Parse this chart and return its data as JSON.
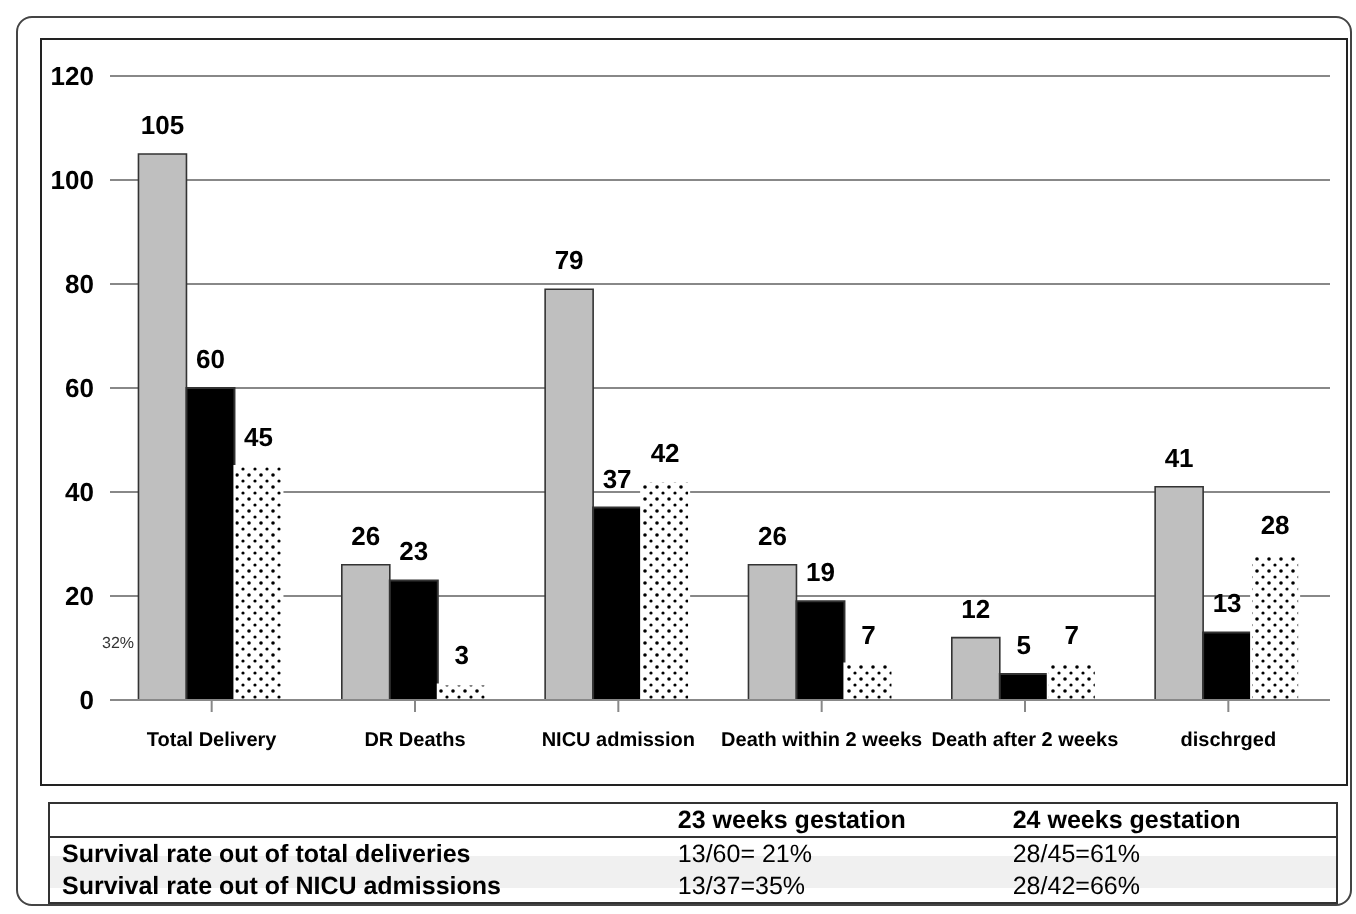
{
  "chart_data": {
    "type": "bar",
    "categories": [
      "Total Delivery",
      "DR Deaths",
      "NICU admission",
      "Death within 2 weeks",
      "Death after 2 weeks",
      "dischrged"
    ],
    "series": [
      {
        "color": "#bfbfbf",
        "values": [
          105,
          26,
          79,
          26,
          12,
          41
        ]
      },
      {
        "color": "#000000",
        "values": [
          60,
          23,
          37,
          19,
          5,
          13
        ]
      },
      {
        "color": "#ffffff",
        "values": [
          45,
          3,
          42,
          7,
          7,
          28
        ]
      }
    ],
    "ylim": [
      0,
      120
    ],
    "yticks": [
      0,
      20,
      40,
      60,
      80,
      100,
      120
    ],
    "grid": "y",
    "legend": false,
    "data_labels": true,
    "annotations": [
      "32%",
      "23 weeks gestation",
      "24 weeks gestation",
      "Survival rate out of total deliveries",
      "13/60= 21%",
      "28/45=61%",
      "Survival rate out of NICU admissions",
      "13/37=35%",
      "28/42=66%"
    ]
  }
}
